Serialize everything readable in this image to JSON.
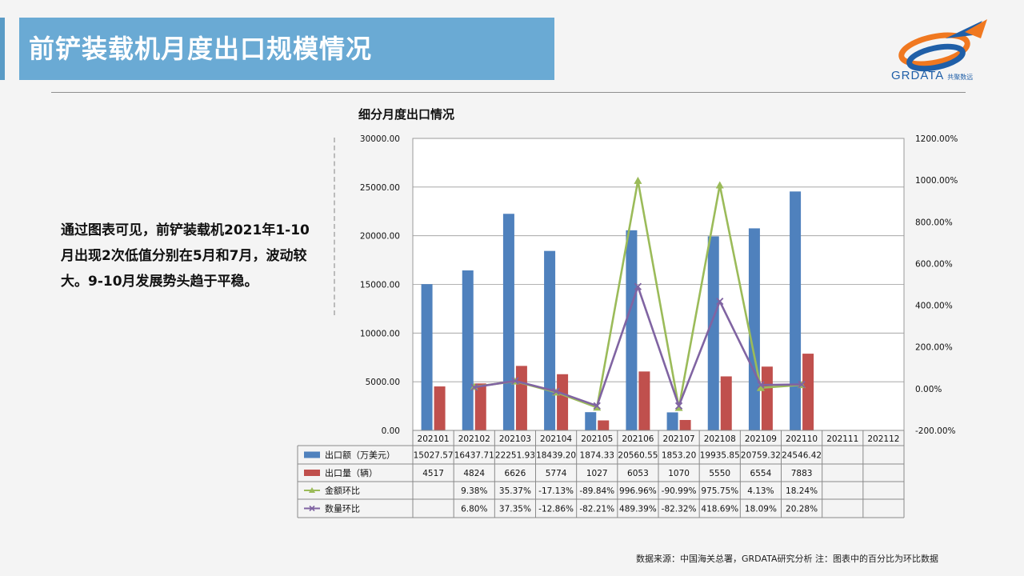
{
  "page": {
    "title": "前铲装载机月度出口规模情况",
    "logo_text": "GRDATA",
    "logo_subtext": "共聚数远",
    "body_text": "通过图表可见，前铲装载机2021年1-10月出现2次低值分别在5月和7月，波动较大。9-10月发展势头趋于平稳。",
    "footer": "数据来源：中国海关总署，GRDATA研究分析  注：图表中的百分比为环比数据"
  },
  "colors": {
    "title_bar": "#6aaad4",
    "amount_bar": "#4f81bd",
    "quantity_bar": "#c0504d",
    "amount_mom": "#9bbb59",
    "quantity_mom": "#8064a2"
  },
  "chart_data": {
    "type": "bar",
    "title": "细分月度出口情况",
    "categories": [
      "202101",
      "202102",
      "202103",
      "202104",
      "202105",
      "202106",
      "202107",
      "202108",
      "202109",
      "202110",
      "202111",
      "202112"
    ],
    "y_left": {
      "min": 0,
      "max": 30000,
      "step": 5000,
      "ticks": [
        "0.00",
        "5000.00",
        "10000.00",
        "15000.00",
        "20000.00",
        "25000.00",
        "30000.00"
      ]
    },
    "y_right": {
      "min": -200,
      "max": 1200,
      "step": 200,
      "ticks": [
        "-200.00%",
        "0.00%",
        "200.00%",
        "400.00%",
        "600.00%",
        "800.00%",
        "1000.00%",
        "1200.00%"
      ]
    },
    "grid": true,
    "legend": "data-table",
    "series": [
      {
        "name": "出口额（万美元）",
        "kind": "bar",
        "axis": "left",
        "values": [
          15027.57,
          16437.71,
          22251.93,
          18439.2,
          1874.33,
          20560.55,
          1853.2,
          19935.85,
          20759.32,
          24546.42,
          null,
          null
        ],
        "labels": [
          "15027.57",
          "16437.71",
          "22251.93",
          "18439.20",
          "1874.33",
          "20560.55",
          "1853.20",
          "19935.85",
          "20759.32",
          "24546.42",
          "",
          ""
        ]
      },
      {
        "name": "出口量（辆）",
        "kind": "bar",
        "axis": "left",
        "values": [
          4517,
          4824,
          6626,
          5774,
          1027,
          6053,
          1070,
          5550,
          6554,
          7883,
          null,
          null
        ],
        "labels": [
          "4517",
          "4824",
          "6626",
          "5774",
          "1027",
          "6053",
          "1070",
          "5550",
          "6554",
          "7883",
          "",
          ""
        ]
      },
      {
        "name": "金额环比",
        "kind": "line",
        "marker": "triangle",
        "axis": "right",
        "values": [
          null,
          9.38,
          35.37,
          -17.13,
          -89.84,
          996.96,
          -90.99,
          975.75,
          4.13,
          18.24,
          null,
          null
        ],
        "labels": [
          "",
          "9.38%",
          "35.37%",
          "-17.13%",
          "-89.84%",
          "996.96%",
          "-90.99%",
          "975.75%",
          "4.13%",
          "18.24%",
          "",
          ""
        ]
      },
      {
        "name": "数量环比",
        "kind": "line",
        "marker": "x",
        "axis": "right",
        "values": [
          null,
          6.8,
          37.35,
          -12.86,
          -82.21,
          489.39,
          -82.32,
          418.69,
          18.09,
          20.28,
          null,
          null
        ],
        "labels": [
          "",
          "6.80%",
          "37.35%",
          "-12.86%",
          "-82.21%",
          "489.39%",
          "-82.32%",
          "418.69%",
          "18.09%",
          "20.28%",
          "",
          ""
        ]
      }
    ]
  }
}
